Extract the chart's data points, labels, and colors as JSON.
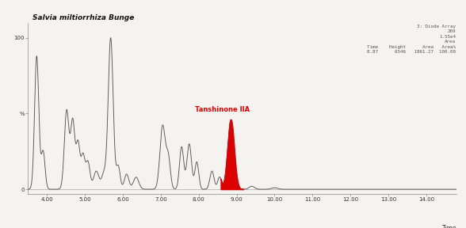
{
  "title": "Salvia miltiorrhiza Bunge",
  "xlabel": "Time",
  "xlim": [
    3.5,
    14.8
  ],
  "ylim": [
    -3,
    110
  ],
  "x_ticks": [
    4.0,
    5.0,
    6.0,
    7.0,
    8.0,
    9.0,
    10.0,
    11.0,
    12.0,
    13.0,
    14.0
  ],
  "annotation_label": "Tanshinone IIA",
  "annotation_color": "#dd0000",
  "bg_color": "#f5f3ef",
  "line_color": "#555555",
  "fill_color": "#dd0000",
  "info_lines": [
    "3: Diode Array",
    "269",
    "1.55e4",
    "Area",
    "Time    Height      Area   Area%",
    "8.87      6546   1861.27  100.00"
  ]
}
